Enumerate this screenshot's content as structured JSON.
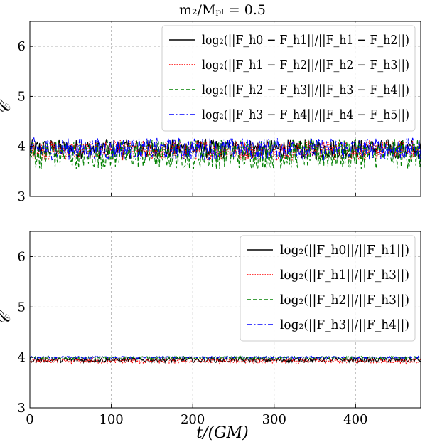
{
  "figure": {
    "title": "m₂/Mₚₗ = 0.5",
    "xlabel": "t/(GM)"
  },
  "chart_data": [
    {
      "type": "line",
      "ylabel": "𝒞",
      "xlim": [
        0,
        480
      ],
      "ylim": [
        3,
        6.5
      ],
      "xticks": [
        0,
        100,
        200,
        300,
        400
      ],
      "yticks": [
        3,
        4,
        5,
        6
      ],
      "show_xtick_labels": false,
      "grid": true,
      "legend_position": "top-right",
      "series": [
        {
          "name": "log₂(||F_h0 − F_h1||/||F_h1 − F_h2||)",
          "color": "#000000",
          "dash": "solid",
          "mean": 3.95,
          "amplitude": 0.2
        },
        {
          "name": "log₂(||F_h1 − F_h2||/||F_h2 − F_h3||)",
          "color": "#ff0000",
          "dash": "dotted",
          "mean": 3.92,
          "amplitude": 0.2
        },
        {
          "name": "log₂(||F_h2 − F_h3||/||F_h3 − F_h4||)",
          "color": "#008000",
          "dash": "dashed",
          "mean": 3.85,
          "amplitude": 0.3
        },
        {
          "name": "log₂(||F_h3 − F_h4||/||F_h4 − F_h5||)",
          "color": "#0000ff",
          "dash": "dashdot",
          "mean": 3.95,
          "amplitude": 0.22
        }
      ]
    },
    {
      "type": "line",
      "ylabel": "𝒞",
      "xlim": [
        0,
        480
      ],
      "ylim": [
        3,
        6.5
      ],
      "xticks": [
        0,
        100,
        200,
        300,
        400
      ],
      "yticks": [
        3,
        4,
        5,
        6
      ],
      "show_xtick_labels": true,
      "grid": true,
      "legend_position": "top-right",
      "series": [
        {
          "name": "log₂(||F_h0||/||F_h1||)",
          "color": "#000000",
          "dash": "solid",
          "mean": 3.95,
          "amplitude": 0.05
        },
        {
          "name": "log₂(||F_h1||/||F_h3||)",
          "color": "#ff0000",
          "dash": "dotted",
          "mean": 3.93,
          "amplitude": 0.05
        },
        {
          "name": "log₂(||F_h2||/||F_h3||)",
          "color": "#008000",
          "dash": "dashed",
          "mean": 3.99,
          "amplitude": 0.03
        },
        {
          "name": "log₂(||F_h3||/||F_h4||)",
          "color": "#0000ff",
          "dash": "dashdot",
          "mean": 4.0,
          "amplitude": 0.02
        }
      ]
    }
  ]
}
